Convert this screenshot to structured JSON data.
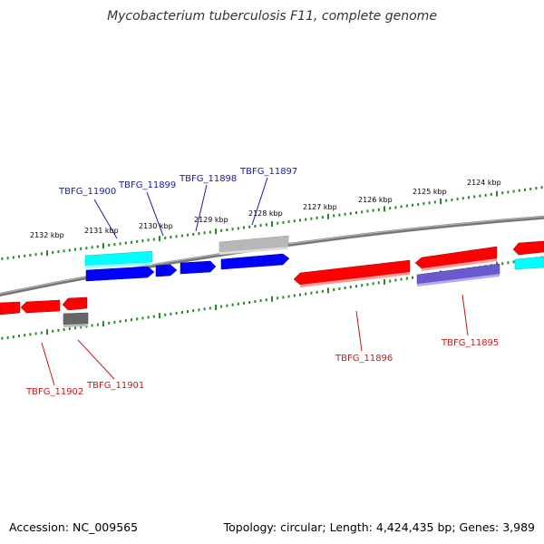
{
  "title": "Mycobacterium tuberculosis F11, complete genome",
  "accession_text": "Accession: NC_009565",
  "summary_text": "Topology: circular; Length: 4,424,435 bp; Genes: 3,989",
  "colors": {
    "backbone": "#808080",
    "tick": "#228B22",
    "forward_label": "#1a1aaa",
    "reverse_label": "#c41a1a",
    "red": "#ff0000",
    "blue": "#0000ff",
    "cyan": "#00ffff",
    "gray": "#a0a0a0",
    "darkgray": "#666666",
    "purple": "#6a5acd"
  },
  "upper_scale": {
    "labels": [
      "2132 kbp",
      "2131 kbp",
      "2130 kbp",
      "2129 kbp",
      "2128 kbp",
      "2127 kbp",
      "2126 kbp",
      "2125 kbp",
      "2124 kbp"
    ]
  },
  "gene_labels": {
    "forward": [
      "TBFG_11900",
      "TBFG_11899",
      "TBFG_11898",
      "TBFG_11897"
    ],
    "reverse": [
      "TBFG_11902",
      "TBFG_11901",
      "TBFG_11896",
      "TBFG_11895"
    ]
  },
  "features": [
    {
      "id": "f_cyan_fwd",
      "color": "cyan"
    },
    {
      "id": "f_blue_1",
      "color": "blue"
    },
    {
      "id": "f_blue_2",
      "color": "blue"
    },
    {
      "id": "f_blue_3",
      "color": "blue"
    },
    {
      "id": "f_blue_4",
      "color": "blue"
    },
    {
      "id": "f_gray_fwd",
      "color": "gray"
    },
    {
      "id": "f_red_1",
      "color": "red"
    },
    {
      "id": "f_red_2",
      "color": "red"
    },
    {
      "id": "f_red_3",
      "color": "red"
    },
    {
      "id": "f_red_big",
      "color": "red"
    },
    {
      "id": "f_red_right",
      "color": "red"
    },
    {
      "id": "f_red_edge",
      "color": "red"
    },
    {
      "id": "f_darkgray",
      "color": "darkgray"
    },
    {
      "id": "f_purple",
      "color": "purple"
    },
    {
      "id": "f_cyan_right",
      "color": "cyan"
    }
  ]
}
